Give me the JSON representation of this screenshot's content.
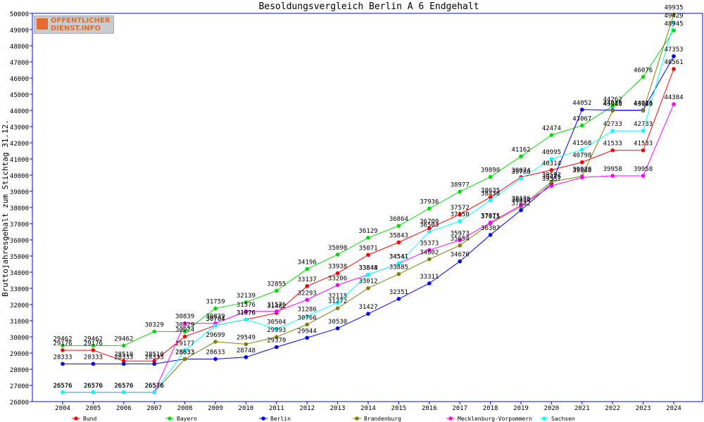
{
  "logo": {
    "line1": "OFFENTLICHER",
    "line2": "DIENST.INFO"
  },
  "colors": {
    "Bund": "#ff0000",
    "Bayern": "#00dd00",
    "Berlin": "#0000ff",
    "Brandenburg": "#808000",
    "Mecklenburg-Vorpommern": "#ff00ff",
    "Sachsen": "#00ffff"
  },
  "chart_data": {
    "type": "line",
    "title": "Besoldungsvergleich Berlin A 6 Endgehalt",
    "xlabel": "",
    "ylabel": "Bruttojahresgehalt zum Stichtag 31.12.",
    "categories": [
      "2004",
      "2005",
      "2006",
      "2007",
      "2008",
      "2009",
      "2010",
      "2011",
      "2012",
      "2013",
      "2014",
      "2015",
      "2016",
      "2017",
      "2018",
      "2019",
      "2020",
      "2021",
      "2022",
      "2023",
      "2024"
    ],
    "ylim": [
      26000,
      50000
    ],
    "yticks": [
      26000,
      27000,
      28000,
      29000,
      30000,
      31000,
      32000,
      33000,
      34000,
      35000,
      36000,
      37000,
      38000,
      39000,
      40000,
      41000,
      42000,
      43000,
      44000,
      45000,
      46000,
      47000,
      48000,
      49000,
      50000
    ],
    "grid": false,
    "legend": "bottom",
    "series": [
      {
        "name": "Bund",
        "color": "#ff0000",
        "values": [
          29176,
          29176,
          28510,
          28510,
          30024,
          30704,
          31076,
          31482,
          33137,
          33938,
          35071,
          35843,
          36709,
          37572,
          38635,
          39874,
          40314,
          40798,
          41533,
          41533,
          46561
        ]
      },
      {
        "name": "Bayern",
        "color": "#00dd00",
        "values": [
          29462,
          29462,
          29462,
          30329,
          30329,
          31759,
          32139,
          32855,
          34196,
          35090,
          36129,
          36864,
          37936,
          38977,
          39890,
          41162,
          42474,
          43067,
          44262,
          46076,
          48945
        ]
      },
      {
        "name": "Berlin",
        "color": "#0000ff",
        "values": [
          28333,
          28333,
          28333,
          28333,
          28633,
          28633,
          28748,
          29370,
          29944,
          30530,
          31427,
          32351,
          33311,
          34670,
          36307,
          37832,
          39475,
          44052,
          44016,
          44016,
          47353
        ]
      },
      {
        "name": "Brandenburg",
        "color": "#808000",
        "values": [
          26576,
          26576,
          26576,
          26576,
          28633,
          29699,
          29549,
          29993,
          30766,
          31772,
          33012,
          33885,
          34802,
          35654,
          37015,
          38054,
          39592,
          39928,
          43983,
          43983,
          49935
        ]
      },
      {
        "name": "Mecklenburg-Vorpommern",
        "color": "#ff00ff",
        "values": [
          26576,
          26576,
          26576,
          26576,
          30839,
          30839,
          31576,
          31576,
          32293,
          33206,
          33844,
          34541,
          35373,
          35973,
          37071,
          38136,
          39337,
          39860,
          39958,
          39958,
          44384
        ]
      },
      {
        "name": "Sachsen",
        "color": "#00ffff",
        "values": [
          26576,
          26576,
          26576,
          26576,
          29177,
          30704,
          31076,
          30504,
          31286,
          32115,
          33848,
          34541,
          36503,
          37150,
          38438,
          39788,
          40995,
          41568,
          42733,
          42733,
          49429
        ]
      }
    ]
  }
}
